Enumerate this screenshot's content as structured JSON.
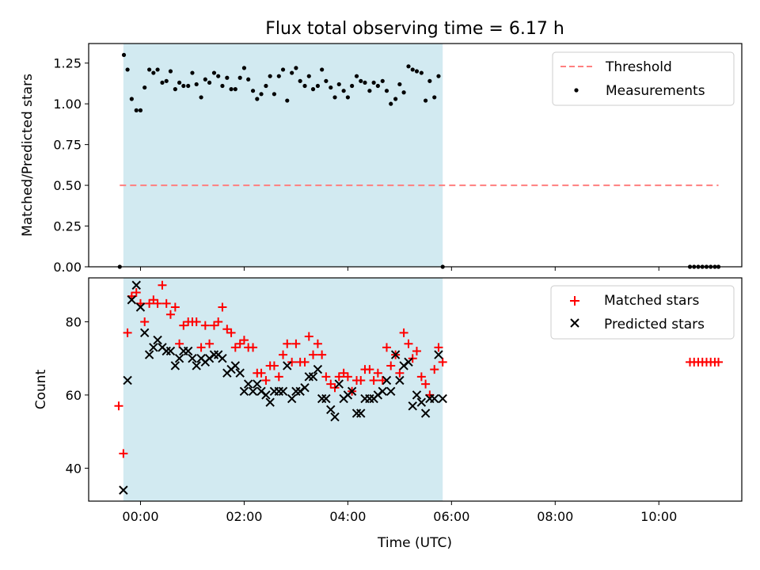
{
  "chart_data": [
    {
      "type": "scatter",
      "title": "Flux total observing time = 6.17 h",
      "xlabel": "",
      "ylabel": "Matched/Predicted stars",
      "xlim": [
        -1.0,
        11.6
      ],
      "ylim": [
        0.0,
        1.37
      ],
      "yticks": [
        0.0,
        0.25,
        0.5,
        0.75,
        1.0,
        1.25
      ],
      "ytick_labels": [
        "0.00",
        "0.25",
        "0.50",
        "0.75",
        "1.00",
        "1.25"
      ],
      "shaded_span": [
        -0.33,
        5.83
      ],
      "shade_color": "#add8e6",
      "threshold": {
        "name": "Threshold",
        "y": 0.5,
        "x_range": [
          -0.4,
          11.15
        ],
        "color": "#ff7f7f"
      },
      "series": [
        {
          "name": "Measurements",
          "color": "#000000",
          "x": [
            -0.4,
            -0.32,
            -0.25,
            -0.17,
            -0.08,
            0.0,
            0.08,
            0.17,
            0.25,
            0.33,
            0.42,
            0.5,
            0.58,
            0.67,
            0.75,
            0.83,
            0.92,
            1.0,
            1.08,
            1.17,
            1.25,
            1.33,
            1.42,
            1.5,
            1.58,
            1.67,
            1.75,
            1.83,
            1.92,
            2.0,
            2.08,
            2.17,
            2.25,
            2.33,
            2.42,
            2.5,
            2.58,
            2.67,
            2.75,
            2.83,
            2.92,
            3.0,
            3.08,
            3.17,
            3.25,
            3.33,
            3.42,
            3.5,
            3.58,
            3.67,
            3.75,
            3.83,
            3.92,
            4.0,
            4.08,
            4.17,
            4.25,
            4.33,
            4.42,
            4.5,
            4.58,
            4.67,
            4.75,
            4.83,
            4.92,
            5.0,
            5.08,
            5.17,
            5.25,
            5.33,
            5.42,
            5.5,
            5.58,
            5.67,
            5.75,
            5.83,
            10.6,
            10.68,
            10.76,
            10.84,
            10.92,
            11.0,
            11.08,
            11.15
          ],
          "values": [
            0.0,
            1.3,
            1.21,
            1.03,
            0.96,
            0.96,
            1.1,
            1.21,
            1.19,
            1.21,
            1.13,
            1.14,
            1.2,
            1.09,
            1.13,
            1.11,
            1.11,
            1.19,
            1.12,
            1.04,
            1.15,
            1.13,
            1.19,
            1.17,
            1.11,
            1.16,
            1.09,
            1.09,
            1.16,
            1.22,
            1.15,
            1.08,
            1.03,
            1.06,
            1.11,
            1.17,
            1.06,
            1.17,
            1.21,
            1.02,
            1.19,
            1.22,
            1.14,
            1.11,
            1.17,
            1.09,
            1.11,
            1.21,
            1.14,
            1.1,
            1.04,
            1.12,
            1.08,
            1.04,
            1.11,
            1.17,
            1.14,
            1.13,
            1.08,
            1.13,
            1.11,
            1.14,
            1.08,
            1.0,
            1.03,
            1.12,
            1.07,
            1.23,
            1.21,
            1.2,
            1.19,
            1.02,
            1.14,
            1.04,
            1.17,
            0.0,
            0.0,
            0.0,
            0.0,
            0.0,
            0.0,
            0.0,
            0.0,
            0.0
          ]
        }
      ],
      "legend": {
        "placement": "top-right",
        "entries": [
          "Threshold",
          "Measurements"
        ]
      }
    },
    {
      "type": "scatter",
      "title": "",
      "xlabel": "Time (UTC)",
      "ylabel": "Count",
      "xlim": [
        -1.0,
        11.6
      ],
      "ylim": [
        31,
        92
      ],
      "yticks": [
        40,
        60,
        80
      ],
      "ytick_labels": [
        "40",
        "60",
        "80"
      ],
      "xticks": [
        0,
        2,
        4,
        6,
        8,
        10
      ],
      "xtick_labels": [
        "00:00",
        "02:00",
        "04:00",
        "06:00",
        "08:00",
        "10:00"
      ],
      "shaded_span": [
        -0.33,
        5.83
      ],
      "shade_color": "#add8e6",
      "series": [
        {
          "name": "Matched stars",
          "marker": "plus",
          "color": "#ff0000",
          "x": [
            -0.42,
            -0.33,
            -0.25,
            -0.17,
            -0.08,
            0.0,
            0.08,
            0.17,
            0.25,
            0.33,
            0.42,
            0.5,
            0.58,
            0.67,
            0.75,
            0.83,
            0.92,
            1.0,
            1.08,
            1.17,
            1.25,
            1.33,
            1.42,
            1.5,
            1.58,
            1.67,
            1.75,
            1.83,
            1.92,
            2.0,
            2.08,
            2.17,
            2.25,
            2.33,
            2.42,
            2.5,
            2.58,
            2.67,
            2.75,
            2.83,
            2.92,
            3.0,
            3.08,
            3.17,
            3.25,
            3.33,
            3.42,
            3.5,
            3.58,
            3.67,
            3.75,
            3.83,
            3.92,
            4.0,
            4.08,
            4.17,
            4.25,
            4.33,
            4.42,
            4.5,
            4.58,
            4.67,
            4.75,
            4.83,
            4.92,
            5.0,
            5.08,
            5.17,
            5.25,
            5.33,
            5.42,
            5.5,
            5.58,
            5.67,
            5.75,
            5.83,
            10.6,
            10.68,
            10.76,
            10.84,
            10.92,
            11.0,
            11.08,
            11.15
          ],
          "values": [
            57,
            44,
            77,
            87,
            88,
            85,
            80,
            85,
            86,
            85,
            90,
            85,
            82,
            84,
            74,
            79,
            80,
            80,
            80,
            73,
            79,
            74,
            79,
            80,
            84,
            78,
            77,
            73,
            74,
            75,
            73,
            73,
            66,
            66,
            64,
            68,
            68,
            65,
            71,
            74,
            69,
            74,
            69,
            69,
            76,
            71,
            74,
            71,
            65,
            63,
            62,
            65,
            66,
            65,
            61,
            64,
            64,
            67,
            67,
            64,
            66,
            64,
            73,
            68,
            71,
            66,
            77,
            74,
            70,
            72,
            65,
            63,
            60,
            67,
            73,
            69,
            69,
            69,
            69,
            69,
            69,
            69,
            69,
            69
          ]
        },
        {
          "name": "Predicted stars",
          "marker": "x",
          "color": "#000000",
          "x": [
            -0.33,
            -0.25,
            -0.17,
            -0.08,
            0.0,
            0.08,
            0.17,
            0.25,
            0.33,
            0.42,
            0.5,
            0.58,
            0.67,
            0.75,
            0.83,
            0.92,
            1.0,
            1.08,
            1.17,
            1.25,
            1.33,
            1.42,
            1.5,
            1.58,
            1.67,
            1.75,
            1.83,
            1.92,
            2.0,
            2.08,
            2.17,
            2.25,
            2.33,
            2.42,
            2.5,
            2.58,
            2.67,
            2.75,
            2.83,
            2.92,
            3.0,
            3.08,
            3.17,
            3.25,
            3.33,
            3.42,
            3.5,
            3.58,
            3.67,
            3.75,
            3.83,
            3.92,
            4.0,
            4.08,
            4.17,
            4.25,
            4.33,
            4.42,
            4.5,
            4.58,
            4.67,
            4.75,
            4.83,
            4.92,
            5.0,
            5.08,
            5.17,
            5.25,
            5.33,
            5.42,
            5.5,
            5.58,
            5.67,
            5.75,
            5.83
          ],
          "values": [
            34,
            64,
            86,
            90,
            84,
            77,
            71,
            73,
            75,
            73,
            72,
            72,
            68,
            70,
            72,
            72,
            70,
            68,
            70,
            69,
            70,
            71,
            71,
            70,
            66,
            67,
            68,
            66,
            61,
            63,
            61,
            63,
            61,
            60,
            58,
            61,
            61,
            61,
            68,
            59,
            61,
            61,
            62,
            65,
            65,
            67,
            59,
            59,
            56,
            54,
            63,
            59,
            60,
            61,
            55,
            55,
            59,
            59,
            59,
            60,
            61,
            64,
            61,
            71,
            64,
            68,
            69,
            57,
            60,
            58,
            55,
            59,
            59,
            71,
            59
          ]
        }
      ],
      "legend": {
        "placement": "top-right",
        "entries": [
          "Matched stars",
          "Predicted stars"
        ]
      }
    }
  ]
}
